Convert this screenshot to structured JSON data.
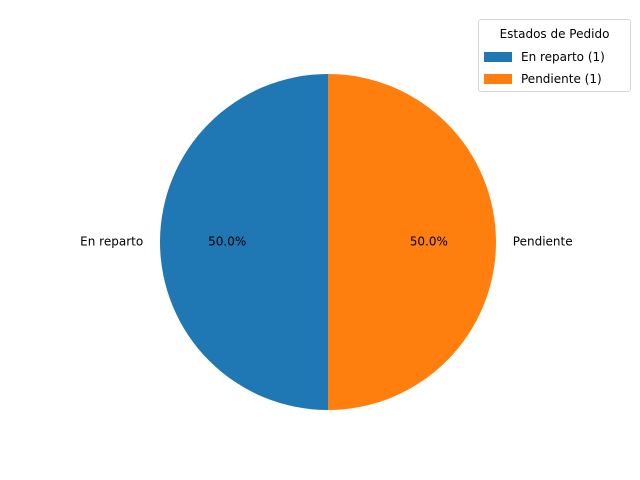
{
  "chart_data": {
    "type": "pie",
    "slices": [
      {
        "label": "En reparto",
        "value": 1,
        "percent_label": "50.0%",
        "color": "#1f77b4"
      },
      {
        "label": "Pendiente",
        "value": 1,
        "percent_label": "50.0%",
        "color": "#ff7f0e"
      }
    ],
    "start_angle_deg": 90,
    "direction": "counterclockwise",
    "legend": {
      "title": "Estados de Pedido",
      "placement": "top-right",
      "entries": [
        "En reparto (1)",
        "Pendiente (1)"
      ]
    }
  }
}
